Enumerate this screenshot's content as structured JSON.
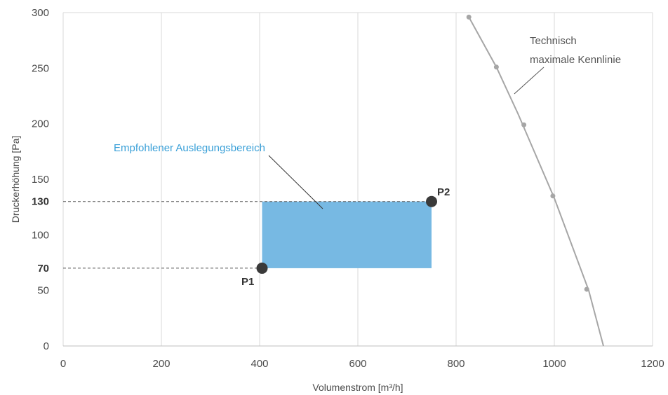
{
  "chart_data": {
    "type": "line",
    "xlabel": "Volumenstrom [m³/h]",
    "ylabel": "Druckerhöhung [Pa]",
    "xlim": [
      0,
      1200
    ],
    "ylim": [
      0,
      300
    ],
    "x_ticks": [
      0,
      200,
      400,
      600,
      800,
      1000,
      1200
    ],
    "y_ticks": [
      0,
      50,
      100,
      150,
      200,
      250,
      300
    ],
    "y_ticks_highlighted": [
      70,
      130
    ],
    "grid": "vertical",
    "series": [
      {
        "name": "Technisch maximale Kennlinie",
        "color": "#a6a6a6",
        "points": [
          [
            826,
            296
          ],
          [
            882,
            251
          ],
          [
            926,
            209
          ],
          [
            1000,
            133
          ],
          [
            1070,
            50
          ],
          [
            1100,
            0
          ]
        ],
        "markers": [
          [
            826,
            296
          ],
          [
            882,
            251
          ],
          [
            938,
            199
          ],
          [
            997,
            135
          ],
          [
            1066,
            51
          ]
        ]
      }
    ],
    "region": {
      "label": "Empfohlener Auslegungsbereich",
      "color": "#77b9e3",
      "label_color": "#3aa0d8",
      "x": [
        405,
        750
      ],
      "y": [
        70,
        130
      ]
    },
    "points": [
      {
        "label": "P1",
        "x": 405,
        "y": 70
      },
      {
        "label": "P2",
        "x": 750,
        "y": 130
      }
    ],
    "curve_annotation": {
      "lines": [
        "Technisch",
        "maximale Kennlinie"
      ]
    }
  }
}
